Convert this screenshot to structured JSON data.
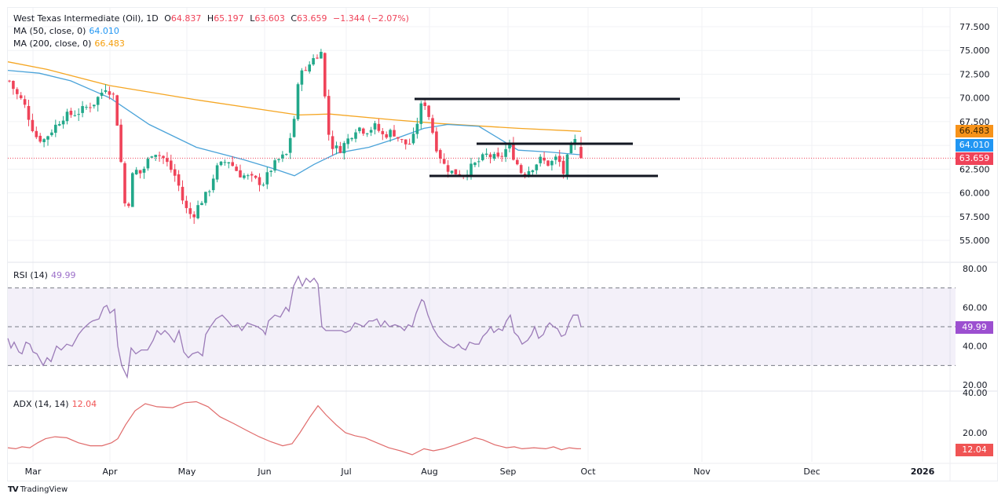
{
  "header": {
    "symbol": "West Texas Intermediate (Oil), 1D",
    "open_label": "O",
    "open": "64.837",
    "high_label": "H",
    "high": "65.197",
    "low_label": "L",
    "low": "63.603",
    "close_label": "C",
    "close": "63.659",
    "change": "−1.344 (−2.07%)"
  },
  "indicators": {
    "ma50": {
      "label": "MA (50, close, 0)",
      "value": "64.010",
      "color": "#2196f3"
    },
    "ma200": {
      "label": "MA (200, close, 0)",
      "value": "66.483",
      "color": "#f59e0b"
    },
    "rsi": {
      "label": "RSI (14)",
      "value": "49.99",
      "color": "#9c6fc9"
    },
    "adx": {
      "label": "ADX (14, 14)",
      "value": "12.04",
      "color": "#f05454"
    }
  },
  "badges": {
    "ma200": "66.483",
    "ma50": "64.010",
    "price": "63.659",
    "rsi": "49.99",
    "adx": "12.04"
  },
  "colors": {
    "up": "#22a88a",
    "down": "#ef4359",
    "grid": "#f0f2f5",
    "level_line": "#131722"
  },
  "footer": {
    "brand": "TradingView"
  },
  "chart_data": [
    {
      "type": "candlestick",
      "title": "West Texas Intermediate (Oil), 1D",
      "ylabel": "Price",
      "ylim": [
        54,
        78
      ],
      "y_ticks": [
        "77.500",
        "75.000",
        "72.500",
        "70.000",
        "67.500",
        "62.500",
        "60.000",
        "57.500",
        "55.000"
      ],
      "x_ticks": [
        "Mar",
        "Apr",
        "May",
        "Jun",
        "Jul",
        "Aug",
        "Sep",
        "Oct",
        "Nov",
        "Dec",
        "2026"
      ],
      "last": {
        "open": 64.837,
        "high": 65.197,
        "low": 63.603,
        "close": 63.659
      },
      "series": [
        {
          "name": "MA 50",
          "last": 64.01
        },
        {
          "name": "MA 200",
          "last": 66.483
        }
      ],
      "horizontal_levels": [
        69.8,
        64.9,
        61.7
      ],
      "approx_path": [
        {
          "x": "Mar",
          "close": 70.5
        },
        {
          "x": "Mid-Mar",
          "close": 66.5
        },
        {
          "x": "Late-Mar",
          "close": 69.5
        },
        {
          "x": "Apr",
          "close": 71.5
        },
        {
          "x": "Apr-9",
          "close": 58.5
        },
        {
          "x": "Mid-Apr",
          "close": 63.5
        },
        {
          "x": "May",
          "close": 58.5
        },
        {
          "x": "May-5",
          "close": 57.5
        },
        {
          "x": "Late-May",
          "close": 61.5
        },
        {
          "x": "Jun",
          "close": 62.5
        },
        {
          "x": "Mid-Jun",
          "close": 72.5
        },
        {
          "x": "Jun-20",
          "close": 75.0
        },
        {
          "x": "Jun-24",
          "close": 65.0
        },
        {
          "x": "Jul",
          "close": 66.5
        },
        {
          "x": "Late-Jul",
          "close": 65.5
        },
        {
          "x": "Aug",
          "close": 69.5
        },
        {
          "x": "Mid-Aug",
          "close": 62.5
        },
        {
          "x": "Sep",
          "close": 64.5
        },
        {
          "x": "Mid-Sep",
          "close": 62.5
        },
        {
          "x": "Late-Sep",
          "close": 65.5
        },
        {
          "x": "Last",
          "close": 63.659
        }
      ]
    },
    {
      "type": "line",
      "title": "RSI (14)",
      "ylim": [
        20,
        80
      ],
      "y_ticks": [
        "80.00",
        "60.00",
        "40.00",
        "20.00"
      ],
      "bands": [
        30,
        50,
        70
      ],
      "last": 49.99,
      "approx_path": [
        {
          "x": "Mar",
          "y": 44
        },
        {
          "x": "Mid-Mar",
          "y": 30
        },
        {
          "x": "Late-Mar",
          "y": 61
        },
        {
          "x": "Apr-9",
          "y": 24
        },
        {
          "x": "Mid-Apr",
          "y": 48
        },
        {
          "x": "May",
          "y": 34
        },
        {
          "x": "Late-May",
          "y": 57
        },
        {
          "x": "Mid-Jun",
          "y": 76
        },
        {
          "x": "Jul",
          "y": 47
        },
        {
          "x": "Aug",
          "y": 64
        },
        {
          "x": "Mid-Aug",
          "y": 40
        },
        {
          "x": "Sep",
          "y": 57
        },
        {
          "x": "Mid-Sep",
          "y": 44
        },
        {
          "x": "Late-Sep",
          "y": 57
        },
        {
          "x": "Last",
          "y": 49.99
        }
      ]
    },
    {
      "type": "line",
      "title": "ADX (14, 14)",
      "ylim": [
        5,
        40
      ],
      "y_ticks": [
        "40.00",
        "20.00"
      ],
      "last": 12.04,
      "approx_path": [
        {
          "x": "Mar",
          "y": 13
        },
        {
          "x": "Mid-Mar",
          "y": 20
        },
        {
          "x": "Apr",
          "y": 15
        },
        {
          "x": "Mid-Apr",
          "y": 34
        },
        {
          "x": "May",
          "y": 36
        },
        {
          "x": "Jun",
          "y": 13
        },
        {
          "x": "Mid-Jun",
          "y": 34
        },
        {
          "x": "Jul",
          "y": 18
        },
        {
          "x": "Aug",
          "y": 10
        },
        {
          "x": "Mid-Aug",
          "y": 20
        },
        {
          "x": "Sep",
          "y": 13
        },
        {
          "x": "Last",
          "y": 12.04
        }
      ]
    }
  ]
}
